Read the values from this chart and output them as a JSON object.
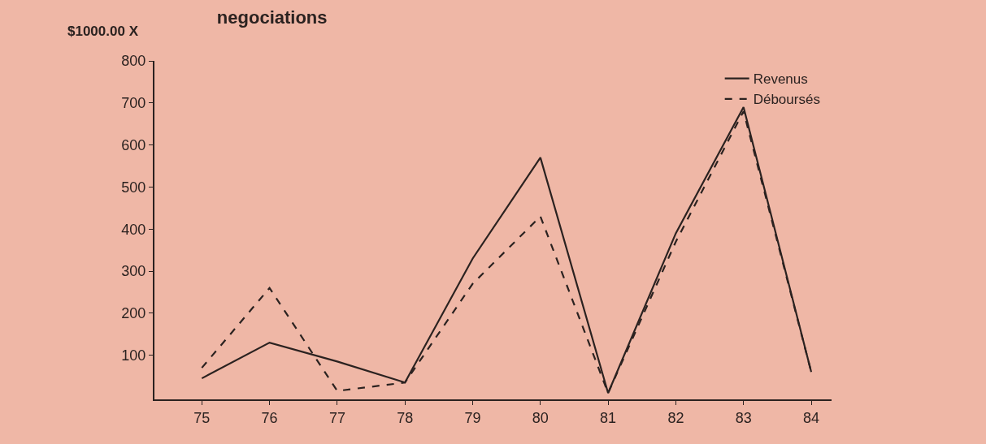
{
  "chart_data": {
    "type": "line",
    "title": "negociations",
    "ylabel": "$1000.00 X",
    "x": [
      75,
      76,
      77,
      78,
      79,
      80,
      81,
      82,
      83,
      84
    ],
    "series": [
      {
        "name": "Revenus",
        "color": "#2b2220",
        "line_style": "solid",
        "values": [
          45,
          130,
          85,
          35,
          330,
          570,
          10,
          390,
          690,
          60
        ]
      },
      {
        "name": "Déboursés",
        "color": "#2b2220",
        "line_style": "dashed",
        "values": [
          70,
          260,
          15,
          35,
          270,
          430,
          10,
          370,
          680,
          60
        ]
      }
    ],
    "xlim": [
      74.3,
      84.3
    ],
    "xticks": [
      75,
      76,
      77,
      78,
      79,
      80,
      81,
      82,
      83,
      84
    ],
    "ylim": [
      -5,
      800
    ],
    "yticks": [
      100,
      200,
      300,
      400,
      500,
      600,
      700,
      800
    ],
    "grid": false,
    "legend": "top right"
  }
}
